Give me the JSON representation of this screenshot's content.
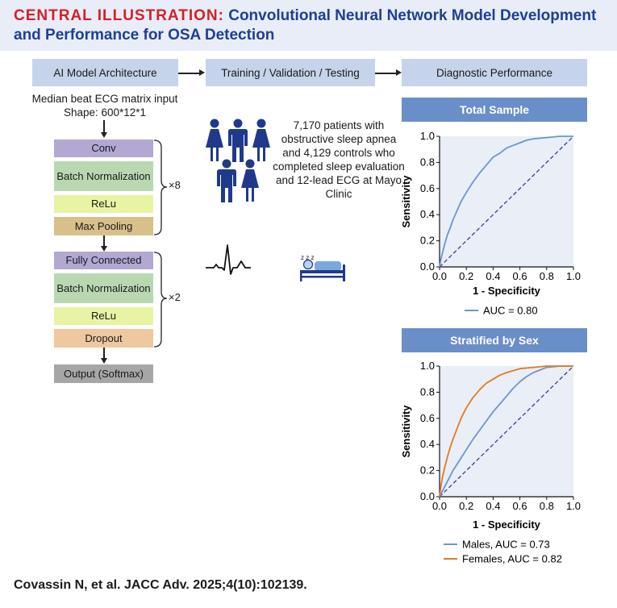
{
  "header": {
    "label": "CENTRAL ILLUSTRATION:",
    "title": "Convolutional Neural Network Model Development and Performance for OSA Detection"
  },
  "steps": [
    "AI Model Architecture",
    "Training / Validation / Testing",
    "Diagnostic Performance"
  ],
  "architecture": {
    "input_line1": "Median beat ECG matrix input",
    "input_line2": "Shape: 600*12*1",
    "block1": [
      {
        "label": "Conv",
        "color": "#b3a7d3"
      },
      {
        "label": "Batch Normalization",
        "color": "#b9d8b2"
      },
      {
        "label": "ReLu",
        "color": "#e9f3a4"
      },
      {
        "label": "Max Pooling",
        "color": "#d8c08b"
      }
    ],
    "block1_repeat": "×8",
    "block2": [
      {
        "label": "Fully Connected",
        "color": "#b3a7d3"
      },
      {
        "label": "Batch Normalization",
        "color": "#b9d8b2"
      },
      {
        "label": "ReLu",
        "color": "#e9f3a4"
      },
      {
        "label": "Dropout",
        "color": "#eec8a0"
      }
    ],
    "block2_repeat": "×2",
    "output": {
      "label": "Output (Softmax)",
      "color": "#a6a6a6"
    }
  },
  "training": {
    "description": "7,170 patients with obstructive sleep apnea and 4,129 controls who completed sleep evaluation and 12-lead ECG at Mayo Clinic",
    "icons": [
      "people-icon",
      "ecg-waveform-icon",
      "sleeping-person-icon"
    ],
    "sleep_text": "z z z"
  },
  "chart_data": [
    {
      "type": "line",
      "title": "Total Sample",
      "xlabel": "1 - Specificity",
      "ylabel": "Sensitivity",
      "xlim": [
        0,
        1
      ],
      "ylim": [
        0,
        1
      ],
      "ticks": [
        "0.0",
        "0.2",
        "0.4",
        "0.6",
        "0.8",
        "1.0"
      ],
      "grid": false,
      "legend": "bottom",
      "diagonal": true,
      "series": [
        {
          "name": "AUC = 0.80",
          "color": "#6b96cc",
          "x": [
            0,
            0.01,
            0.02,
            0.04,
            0.06,
            0.08,
            0.1,
            0.13,
            0.16,
            0.2,
            0.25,
            0.3,
            0.35,
            0.4,
            0.45,
            0.5,
            0.55,
            0.6,
            0.65,
            0.7,
            0.8,
            0.9,
            1.0
          ],
          "y": [
            0,
            0.06,
            0.1,
            0.18,
            0.25,
            0.3,
            0.36,
            0.43,
            0.5,
            0.57,
            0.65,
            0.72,
            0.78,
            0.84,
            0.87,
            0.91,
            0.93,
            0.95,
            0.97,
            0.98,
            0.99,
            1.0,
            1.0
          ]
        }
      ]
    },
    {
      "type": "line",
      "title": "Stratified by Sex",
      "xlabel": "1 - Specificity",
      "ylabel": "Sensitivity",
      "xlim": [
        0,
        1
      ],
      "ylim": [
        0,
        1
      ],
      "ticks": [
        "0.0",
        "0.2",
        "0.4",
        "0.6",
        "0.8",
        "1.0"
      ],
      "grid": false,
      "legend": "bottom",
      "diagonal": true,
      "series": [
        {
          "name": "Males, AUC = 0.73",
          "color": "#6b96cc",
          "x": [
            0,
            0.02,
            0.05,
            0.1,
            0.15,
            0.2,
            0.25,
            0.3,
            0.35,
            0.4,
            0.45,
            0.5,
            0.55,
            0.6,
            0.65,
            0.7,
            0.75,
            0.8,
            0.9,
            1.0
          ],
          "y": [
            0,
            0.04,
            0.1,
            0.2,
            0.28,
            0.36,
            0.44,
            0.51,
            0.58,
            0.65,
            0.71,
            0.77,
            0.83,
            0.88,
            0.92,
            0.95,
            0.97,
            0.99,
            1.0,
            1.0
          ]
        },
        {
          "name": "Females, AUC = 0.82",
          "color": "#e07b24",
          "x": [
            0,
            0.01,
            0.02,
            0.04,
            0.06,
            0.08,
            0.1,
            0.13,
            0.16,
            0.2,
            0.25,
            0.3,
            0.35,
            0.4,
            0.45,
            0.5,
            0.6,
            0.7,
            0.8,
            0.9,
            1.0
          ],
          "y": [
            0,
            0.08,
            0.14,
            0.23,
            0.31,
            0.38,
            0.44,
            0.52,
            0.6,
            0.68,
            0.76,
            0.82,
            0.87,
            0.9,
            0.93,
            0.95,
            0.98,
            0.99,
            1.0,
            1.0,
            1.0
          ]
        }
      ]
    }
  ],
  "footer": "Covassin N, et al. JACC Adv. 2025;4(10):102139."
}
